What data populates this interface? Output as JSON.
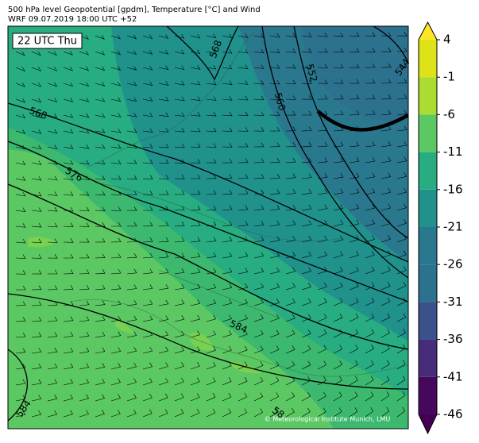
{
  "header": {
    "line1": "500 hPa level Geopotential [gpdm], Temperature [°C] and Wind",
    "line2": "WRF 09.07.2019 18:00 UTC +52"
  },
  "map": {
    "time_label": "22 UTC Thu",
    "contour_labels": [
      "568",
      "552",
      "560",
      "544",
      "568",
      "576",
      "584",
      "584",
      "58"
    ],
    "credit": "© Meteorological Institute Munich, LMU"
  },
  "colorbar": {
    "ticks": [
      4,
      -1,
      -6,
      -11,
      -16,
      -21,
      -26,
      -31,
      -36,
      -41,
      -46
    ],
    "colors": [
      "#440154",
      "#46085c",
      "#472c7a",
      "#3b518b",
      "#2c718e",
      "#2a788e",
      "#21918c",
      "#27ad81",
      "#5cc863",
      "#aadc32",
      "#dde318",
      "#fde725"
    ]
  }
}
